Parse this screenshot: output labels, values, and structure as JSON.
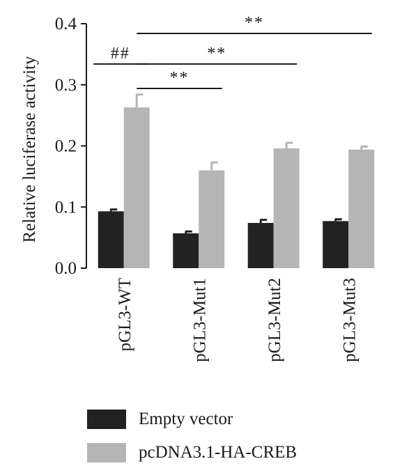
{
  "chart_data": {
    "type": "bar",
    "title": "",
    "xlabel": "",
    "ylabel": "Relative luciferase activity",
    "ylim": [
      0.0,
      0.4
    ],
    "yticks": [
      "0.0",
      "0.1",
      "0.2",
      "0.3",
      "0.4"
    ],
    "categories": [
      "pGL3-WT",
      "pGL3-Mut1",
      "pGL3-Mut2",
      "pGL3-Mut3"
    ],
    "series": [
      {
        "name": "Empty vector",
        "color": "#222222",
        "values": [
          0.093,
          0.057,
          0.074,
          0.077
        ],
        "errors": [
          0.003,
          0.003,
          0.005,
          0.003
        ]
      },
      {
        "name": "pcDNA3.1-HA-CREB",
        "color": "#b5b5b5",
        "values": [
          0.263,
          0.16,
          0.196,
          0.194
        ],
        "errors": [
          0.021,
          0.013,
          0.009,
          0.005
        ]
      }
    ],
    "annotations": [
      {
        "label": "##",
        "from": "pGL3-WT / Empty vector",
        "to": "pGL3-WT / pcDNA3.1-HA-CREB",
        "level": 0.334
      },
      {
        "label": "**",
        "from": "pGL3-WT / pcDNA3.1-HA-CREB",
        "to": "pGL3-Mut1 / pcDNA3.1-HA-CREB",
        "level": 0.294
      },
      {
        "label": "**",
        "from": "pGL3-WT / pcDNA3.1-HA-CREB",
        "to": "pGL3-Mut2 / pcDNA3.1-HA-CREB",
        "level": 0.334
      },
      {
        "label": "**",
        "from": "pGL3-WT / pcDNA3.1-HA-CREB",
        "to": "pGL3-Mut3 / pcDNA3.1-HA-CREB",
        "level": 0.384
      }
    ],
    "legend": {
      "placement": "bottom-left"
    }
  }
}
